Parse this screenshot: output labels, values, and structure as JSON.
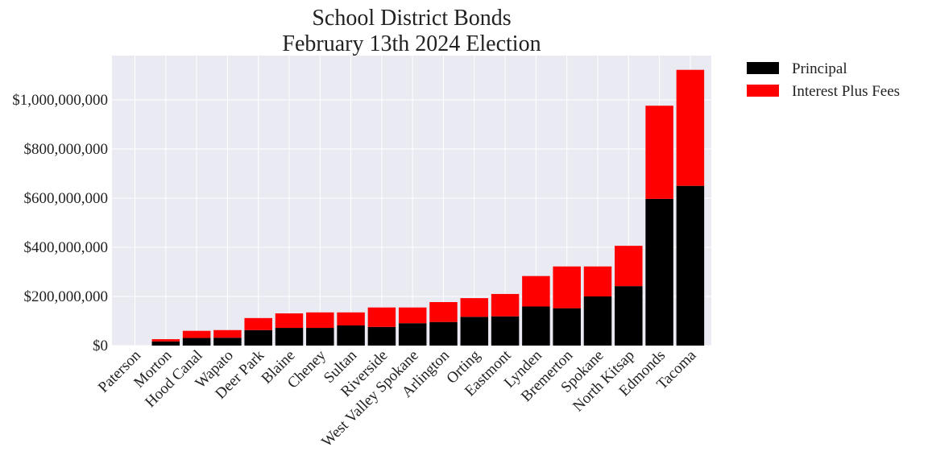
{
  "chart_data": {
    "type": "bar",
    "stacked": true,
    "title": "School District Bonds",
    "subtitle": "February 13th 2024 Election",
    "xlabel": "",
    "ylabel": "",
    "ylim": [
      0,
      1180000000
    ],
    "yticks": [
      0,
      200000000,
      400000000,
      600000000,
      800000000,
      1000000000
    ],
    "ytick_labels": [
      "$0",
      "$200,000,000",
      "$400,000,000",
      "$600,000,000",
      "$800,000,000",
      "$1,000,000,000"
    ],
    "grid": true,
    "legend_position": "outside-top-right",
    "categories": [
      "Paterson",
      "Morton",
      "Hood Canal",
      "Wapato",
      "Deer Park",
      "Blaine",
      "Cheney",
      "Sultan",
      "Riverside",
      "West Valley Spokane",
      "Arlington",
      "Orting",
      "Eastmont",
      "Lynden",
      "Bremerton",
      "Spokane",
      "North Kitsap",
      "Edmonds",
      "Tacoma"
    ],
    "series": [
      {
        "name": "Principal",
        "color": "#000000",
        "values": [
          0,
          17000000,
          31000000,
          32000000,
          63000000,
          72000000,
          72000000,
          82000000,
          76000000,
          91000000,
          96000000,
          117000000,
          119000000,
          159000000,
          152000000,
          200000000,
          242000000,
          597000000,
          650000000
        ]
      },
      {
        "name": "Interest Plus Fees",
        "color": "#ff0000",
        "values": [
          0,
          9000000,
          29000000,
          31000000,
          49000000,
          59000000,
          63000000,
          53000000,
          79000000,
          64000000,
          81000000,
          76000000,
          91000000,
          124000000,
          170000000,
          122000000,
          164000000,
          379000000,
          472000000
        ]
      }
    ]
  },
  "colors": {
    "plot_background": "#eaeaf2",
    "grid": "#ffffff"
  }
}
